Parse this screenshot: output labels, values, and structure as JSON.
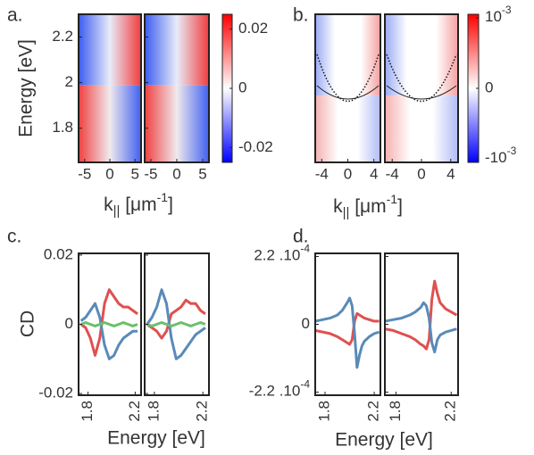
{
  "chart_data": [
    {
      "type": "heatmap",
      "panel": "a.",
      "ylabel": "Energy [eV]",
      "xlabel": {
        "base": "k",
        "sub": "||",
        "unit": " [μm",
        "sup": "-1",
        "end": "]"
      },
      "xlim": [
        -6.2,
        6.2
      ],
      "xticks": [
        -5,
        0,
        5
      ],
      "ylim": [
        1.65,
        2.3
      ],
      "yticks": [
        1.8,
        2,
        2.2
      ],
      "clim": [
        -0.025,
        0.025
      ],
      "cticks": [
        0.02,
        0,
        -0.02
      ],
      "colormap": [
        "#0000ff",
        "#ffffff",
        "#ff0000"
      ]
    },
    {
      "type": "heatmap",
      "panel": "b.",
      "xlabel": {
        "base": "k",
        "sub": "||",
        "unit": " [μm",
        "sup": "-1",
        "end": "]"
      },
      "xlim": [
        -5,
        5
      ],
      "xticks": [
        -4,
        0,
        4
      ],
      "clim": [
        -0.00105,
        0.00105
      ],
      "cticks": [
        {
          "value": 0.001,
          "label": "10",
          "exponent": "-3"
        },
        0,
        {
          "value": -0.001,
          "label": "-10",
          "exponent": "-3"
        }
      ],
      "colormap": [
        "#0000ff",
        "#ffffff",
        "#ff0000"
      ]
    },
    {
      "type": "line",
      "panel": "c.",
      "ylabel": "CD",
      "xlabel": "Energy [eV]",
      "xlim": [
        1.72,
        2.25
      ],
      "xticks": [
        1.8,
        2.2
      ],
      "ylim": [
        -0.0205,
        0.0205
      ],
      "yticks": [
        0.02,
        0,
        -0.02
      ],
      "x": [
        1.74,
        1.78,
        1.82,
        1.86,
        1.9,
        1.94,
        1.98,
        2.02,
        2.06,
        2.1,
        2.14,
        2.18,
        2.22
      ],
      "subplots": [
        {
          "series": [
            {
              "color": "#e05050",
              "values": [
                0,
                -0.001,
                -0.004,
                -0.009,
                -0.004,
                0.006,
                0.01,
                0.008,
                0.006,
                0.005,
                0.005,
                0.004,
                0.003
              ]
            },
            {
              "color": "#5a8ab8",
              "values": [
                0.001,
                0.002,
                0.004,
                0.006,
                0.002,
                -0.006,
                -0.01,
                -0.009,
                -0.006,
                -0.004,
                -0.003,
                -0.002,
                -0.002
              ]
            },
            {
              "color": "#6cbf6c",
              "values": [
                0,
                0.0005,
                0,
                -0.0005,
                0,
                0.0005,
                0,
                -0.0005,
                0,
                0.0005,
                0,
                -0.0005,
                0
              ]
            }
          ]
        },
        {
          "series": [
            {
              "color": "#e05050",
              "values": [
                0,
                -0.001,
                -0.002,
                -0.004,
                -0.002,
                0.003,
                0.004,
                0.005,
                0.007,
                0.006,
                0.006,
                0.004,
                0.003
              ]
            },
            {
              "color": "#5a8ab8",
              "values": [
                0,
                0.002,
                0.005,
                0.01,
                0.006,
                -0.004,
                -0.01,
                -0.009,
                -0.007,
                -0.005,
                -0.003,
                -0.002,
                -0.001
              ]
            },
            {
              "color": "#6cbf6c",
              "values": [
                0,
                -0.0005,
                0,
                0.0005,
                0,
                -0.0005,
                0,
                0.0005,
                0,
                -0.0005,
                0,
                0.0005,
                0
              ]
            }
          ]
        }
      ]
    },
    {
      "type": "line",
      "panel": "d.",
      "xlabel": "Energy [eV]",
      "xlim": [
        1.72,
        2.25
      ],
      "xticks": [
        1.8,
        2.2
      ],
      "ylim": [
        -0.00023,
        0.00023
      ],
      "yticks": [
        {
          "value": 0.00022,
          "label": "2.2 .10",
          "exponent": "-4"
        },
        0,
        {
          "value": -0.00022,
          "label": "-2.2 .10",
          "exponent": "-4"
        }
      ],
      "x": [
        1.72,
        1.78,
        1.84,
        1.9,
        1.94,
        1.98,
        2.0,
        2.02,
        2.04,
        2.06,
        2.08,
        2.1,
        2.12,
        2.16,
        2.2,
        2.24
      ],
      "subplots": [
        {
          "series": [
            {
              "color": "#e05050",
              "values": [
                -2e-05,
                -2.5e-05,
                -3e-05,
                -4e-05,
                -5e-05,
                -6e-05,
                -6.5e-05,
                -5e-05,
                1e-05,
                3.5e-05,
                3e-05,
                2.5e-05,
                2e-05,
                1.5e-05,
                1e-05,
                1e-05
              ]
            },
            {
              "color": "#5a8ab8",
              "values": [
                1e-05,
                1.5e-05,
                2e-05,
                3e-05,
                4.5e-05,
                7e-05,
                8.5e-05,
                6e-05,
                -3e-05,
                -0.00014,
                -0.0001,
                -7e-05,
                -5.5e-05,
                -4e-05,
                -3e-05,
                -2.5e-05
              ]
            }
          ]
        },
        {
          "series": [
            {
              "color": "#e05050",
              "values": [
                -1.5e-05,
                -2e-05,
                -3e-05,
                -4e-05,
                -5e-05,
                -6.5e-05,
                -7e-05,
                -8e-05,
                -5e-05,
                8e-05,
                0.00014,
                0.0001,
                7e-05,
                5e-05,
                4e-05,
                3e-05
              ]
            },
            {
              "color": "#5a8ab8",
              "values": [
                1e-05,
                1.5e-05,
                2e-05,
                3e-05,
                4e-05,
                5.5e-05,
                7e-05,
                6e-05,
                2e-05,
                -6e-05,
                -9e-05,
                -5e-05,
                -3.5e-05,
                -2.5e-05,
                -2e-05,
                -1.5e-05
              ]
            }
          ]
        }
      ]
    }
  ]
}
